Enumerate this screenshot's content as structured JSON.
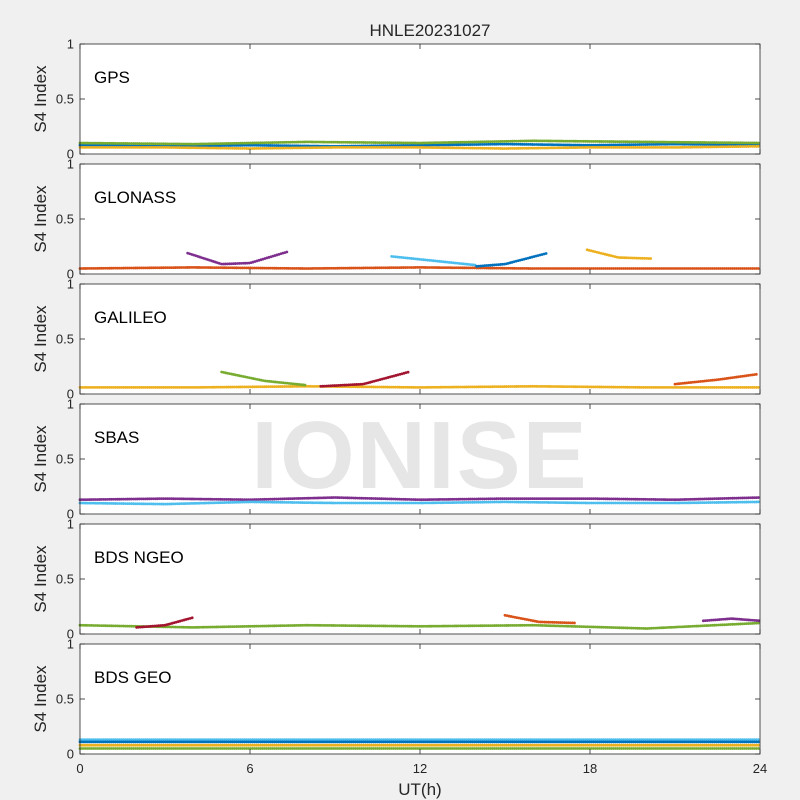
{
  "chart_data": {
    "type": "scatter",
    "title": "HNLE20231027",
    "xlabel": "UT(h)",
    "ylabel": "S4 Index",
    "xlim": [
      0,
      24
    ],
    "ylim": [
      0,
      1
    ],
    "x_ticks": [
      "0",
      "6",
      "12",
      "18",
      "24"
    ],
    "y_ticks": [
      "0",
      "0.5",
      "1"
    ],
    "watermark": "IONISE",
    "colors": [
      "#0072BD",
      "#D95319",
      "#EDB120",
      "#7E2F8E",
      "#77AC30",
      "#4DBEEE",
      "#A2142F"
    ],
    "panels": [
      {
        "label": "GPS",
        "series": [
          {
            "x": [
              0,
              3,
              6,
              9,
              12,
              15,
              18,
              21,
              24
            ],
            "y": [
              0.08,
              0.07,
              0.08,
              0.07,
              0.08,
              0.09,
              0.08,
              0.09,
              0.08
            ]
          },
          {
            "x": [
              0,
              3,
              6,
              9,
              12,
              15,
              18,
              21,
              24
            ],
            "y": [
              0.06,
              0.06,
              0.05,
              0.06,
              0.06,
              0.05,
              0.06,
              0.06,
              0.07
            ]
          },
          {
            "x": [
              0,
              4,
              8,
              12,
              16,
              20,
              24
            ],
            "y": [
              0.1,
              0.09,
              0.11,
              0.1,
              0.12,
              0.11,
              0.1
            ]
          }
        ]
      },
      {
        "label": "GLONASS",
        "series": [
          {
            "x": [
              0,
              4,
              8,
              12,
              16,
              20,
              24
            ],
            "y": [
              0.05,
              0.06,
              0.05,
              0.06,
              0.05,
              0.05,
              0.05
            ]
          },
          {
            "x": [
              3.8,
              5,
              6,
              7.3
            ],
            "y": [
              0.19,
              0.09,
              0.1,
              0.2
            ]
          },
          {
            "x": [
              11,
              12.5,
              14
            ],
            "y": [
              0.16,
              0.12,
              0.08
            ]
          },
          {
            "x": [
              14,
              15,
              16.5
            ],
            "y": [
              0.07,
              0.09,
              0.19
            ]
          },
          {
            "x": [
              17.9,
              19,
              20.2
            ],
            "y": [
              0.22,
              0.15,
              0.14
            ]
          }
        ]
      },
      {
        "label": "GALILEO",
        "series": [
          {
            "x": [
              0,
              4,
              8,
              12,
              16,
              20,
              24
            ],
            "y": [
              0.06,
              0.06,
              0.07,
              0.06,
              0.07,
              0.06,
              0.06
            ]
          },
          {
            "x": [
              5,
              6.5,
              8
            ],
            "y": [
              0.2,
              0.12,
              0.08
            ]
          },
          {
            "x": [
              8.5,
              10,
              11.6
            ],
            "y": [
              0.07,
              0.09,
              0.2
            ]
          },
          {
            "x": [
              21,
              22.5,
              23.9
            ],
            "y": [
              0.09,
              0.13,
              0.18
            ]
          }
        ]
      },
      {
        "label": "SBAS",
        "series": [
          {
            "x": [
              0,
              3,
              6,
              9,
              12,
              15,
              18,
              21,
              24
            ],
            "y": [
              0.13,
              0.14,
              0.13,
              0.15,
              0.13,
              0.14,
              0.14,
              0.13,
              0.15
            ]
          },
          {
            "x": [
              0,
              3,
              6,
              9,
              12,
              15,
              18,
              21,
              24
            ],
            "y": [
              0.1,
              0.09,
              0.11,
              0.1,
              0.1,
              0.11,
              0.1,
              0.1,
              0.11
            ]
          }
        ]
      },
      {
        "label": "BDS NGEO",
        "series": [
          {
            "x": [
              0,
              4,
              8,
              12,
              16,
              20,
              24
            ],
            "y": [
              0.08,
              0.06,
              0.08,
              0.07,
              0.08,
              0.05,
              0.1
            ]
          },
          {
            "x": [
              2,
              3,
              4
            ],
            "y": [
              0.06,
              0.08,
              0.15
            ]
          },
          {
            "x": [
              15,
              16.2,
              17.5
            ],
            "y": [
              0.17,
              0.11,
              0.1
            ]
          },
          {
            "x": [
              22,
              23,
              24
            ],
            "y": [
              0.12,
              0.14,
              0.12
            ]
          }
        ]
      },
      {
        "label": "BDS GEO",
        "series": [
          {
            "x": [
              0,
              24
            ],
            "y": [
              0.13,
              0.13
            ]
          },
          {
            "x": [
              0,
              24
            ],
            "y": [
              0.11,
              0.11
            ]
          },
          {
            "x": [
              0,
              24
            ],
            "y": [
              0.08,
              0.08
            ]
          },
          {
            "x": [
              0,
              24
            ],
            "y": [
              0.05,
              0.05
            ]
          }
        ]
      }
    ]
  }
}
